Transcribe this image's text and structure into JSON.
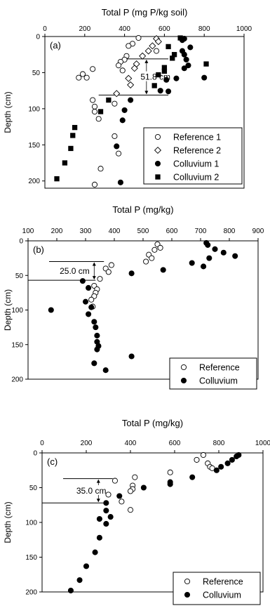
{
  "chart_data": [
    {
      "type": "scatter",
      "panel_label": "(a)",
      "xlabel": "Total P (mg P/kg soil)",
      "ylabel": "Depth (cm)",
      "xlim": [
        0,
        1000
      ],
      "ylim": [
        0,
        210
      ],
      "x_ticks": [
        0,
        200,
        400,
        600,
        800,
        1000
      ],
      "y_ticks": [
        0,
        50,
        100,
        150,
        200
      ],
      "grid": false,
      "legend_position": "bottom-right",
      "series": [
        {
          "name": "Reference 1",
          "marker": "circle-open",
          "points": [
            [
              470,
              2
            ],
            [
              440,
              10
            ],
            [
              420,
              13
            ],
            [
              560,
              20
            ],
            [
              410,
              27
            ],
            [
              400,
              32
            ],
            [
              380,
              35
            ],
            [
              370,
              40
            ],
            [
              390,
              47
            ],
            [
              240,
              45
            ],
            [
              190,
              52
            ],
            [
              170,
              57
            ],
            [
              210,
              57
            ],
            [
              240,
              88
            ],
            [
              350,
              93
            ],
            [
              250,
              97
            ],
            [
              250,
              104
            ],
            [
              270,
              114
            ],
            [
              350,
              138
            ],
            [
              370,
              162
            ],
            [
              280,
              183
            ],
            [
              250,
              205
            ]
          ]
        },
        {
          "name": "Reference 2",
          "marker": "diamond-open",
          "points": [
            [
              560,
              3
            ],
            [
              570,
              7
            ],
            [
              540,
              13
            ],
            [
              520,
              20
            ],
            [
              490,
              27
            ],
            [
              460,
              38
            ],
            [
              450,
              44
            ],
            [
              420,
              58
            ],
            [
              430,
              67
            ],
            [
              360,
              79
            ]
          ]
        },
        {
          "name": "Colluvium 1",
          "marker": "circle-filled",
          "points": [
            [
              700,
              3
            ],
            [
              690,
              5
            ],
            [
              730,
              15
            ],
            [
              690,
              20
            ],
            [
              700,
              25
            ],
            [
              710,
              32
            ],
            [
              720,
              40
            ],
            [
              700,
              44
            ],
            [
              800,
              57
            ],
            [
              660,
              58
            ],
            [
              610,
              60
            ],
            [
              580,
              75
            ],
            [
              620,
              76
            ],
            [
              430,
              88
            ],
            [
              400,
              102
            ],
            [
              390,
              116
            ],
            [
              360,
              152
            ],
            [
              380,
              202
            ]
          ]
        },
        {
          "name": "Colluvium 2",
          "marker": "square-filled",
          "points": [
            [
              680,
              2
            ],
            [
              620,
              14
            ],
            [
              650,
              25
            ],
            [
              640,
              30
            ],
            [
              600,
              43
            ],
            [
              810,
              38
            ],
            [
              600,
              48
            ],
            [
              570,
              53
            ],
            [
              550,
              68
            ],
            [
              320,
              88
            ],
            [
              280,
              104
            ],
            [
              150,
              126
            ],
            [
              140,
              137
            ],
            [
              130,
              155
            ],
            [
              100,
              175
            ],
            [
              60,
              197
            ]
          ]
        }
      ],
      "annotation": {
        "text": "51.8 cm",
        "depth_from": 31,
        "depth_to": 81
      }
    },
    {
      "type": "scatter",
      "panel_label": "(b)",
      "xlabel": "Total P (mg/kg)",
      "ylabel": "Depth (cm)",
      "xlim": [
        100,
        900
      ],
      "ylim": [
        0,
        200
      ],
      "x_ticks": [
        100,
        200,
        300,
        400,
        500,
        600,
        700,
        800,
        900
      ],
      "y_ticks": [
        0,
        50,
        100,
        150,
        200
      ],
      "grid": false,
      "legend_position": "bottom-right",
      "series": [
        {
          "name": "Reference",
          "marker": "circle-open",
          "points": [
            [
              550,
              5
            ],
            [
              560,
              10
            ],
            [
              540,
              13
            ],
            [
              520,
              20
            ],
            [
              530,
              25
            ],
            [
              510,
              30
            ],
            [
              390,
              35
            ],
            [
              370,
              40
            ],
            [
              380,
              45
            ],
            [
              350,
              55
            ],
            [
              330,
              65
            ],
            [
              340,
              70
            ],
            [
              335,
              75
            ],
            [
              330,
              80
            ],
            [
              320,
              85
            ],
            [
              325,
              95
            ]
          ]
        },
        {
          "name": "Colluvium",
          "marker": "circle-filled",
          "points": [
            [
              720,
              3
            ],
            [
              725,
              6
            ],
            [
              750,
              12
            ],
            [
              780,
              17
            ],
            [
              820,
              22
            ],
            [
              730,
              25
            ],
            [
              670,
              32
            ],
            [
              710,
              37
            ],
            [
              570,
              42
            ],
            [
              460,
              47
            ],
            [
              290,
              58
            ],
            [
              310,
              68
            ],
            [
              300,
              88
            ],
            [
              320,
              96
            ],
            [
              180,
              100
            ],
            [
              310,
              106
            ],
            [
              330,
              117
            ],
            [
              335,
              125
            ],
            [
              340,
              137
            ],
            [
              340,
              146
            ],
            [
              345,
              152
            ],
            [
              340,
              157
            ],
            [
              460,
              167
            ],
            [
              330,
              177
            ],
            [
              370,
              187
            ]
          ]
        }
      ],
      "annotation": {
        "text": "25.0 cm",
        "depth_from": 30,
        "depth_to": 57
      }
    },
    {
      "type": "scatter",
      "panel_label": "(c)",
      "xlabel": "Total P (mg/kg)",
      "ylabel": "Depth (cm)",
      "xlim": [
        0,
        1000
      ],
      "ylim": [
        0,
        200
      ],
      "x_ticks": [
        0,
        200,
        400,
        600,
        800,
        1000
      ],
      "y_ticks": [
        0,
        50,
        100,
        150,
        200
      ],
      "grid": false,
      "legend_position": "bottom-right",
      "series": [
        {
          "name": "Reference",
          "marker": "circle-open",
          "points": [
            [
              730,
              3
            ],
            [
              700,
              10
            ],
            [
              750,
              15
            ],
            [
              760,
              20
            ],
            [
              770,
              22
            ],
            [
              580,
              28
            ],
            [
              420,
              35
            ],
            [
              330,
              40
            ],
            [
              410,
              47
            ],
            [
              410,
              52
            ],
            [
              400,
              55
            ],
            [
              300,
              60
            ],
            [
              360,
              70
            ],
            [
              400,
              82
            ]
          ]
        },
        {
          "name": "Colluvium",
          "marker": "circle-filled",
          "points": [
            [
              890,
              3
            ],
            [
              880,
              5
            ],
            [
              860,
              10
            ],
            [
              840,
              15
            ],
            [
              810,
              20
            ],
            [
              790,
              25
            ],
            [
              680,
              35
            ],
            [
              580,
              42
            ],
            [
              580,
              45
            ],
            [
              460,
              50
            ],
            [
              350,
              62
            ],
            [
              290,
              72
            ],
            [
              290,
              83
            ],
            [
              310,
              92
            ],
            [
              260,
              95
            ],
            [
              290,
              102
            ],
            [
              260,
              122
            ],
            [
              240,
              143
            ],
            [
              200,
              163
            ],
            [
              170,
              183
            ],
            [
              130,
              198
            ]
          ]
        }
      ],
      "annotation": {
        "text": "35.0 cm",
        "depth_from": 37,
        "depth_to": 72
      }
    }
  ]
}
